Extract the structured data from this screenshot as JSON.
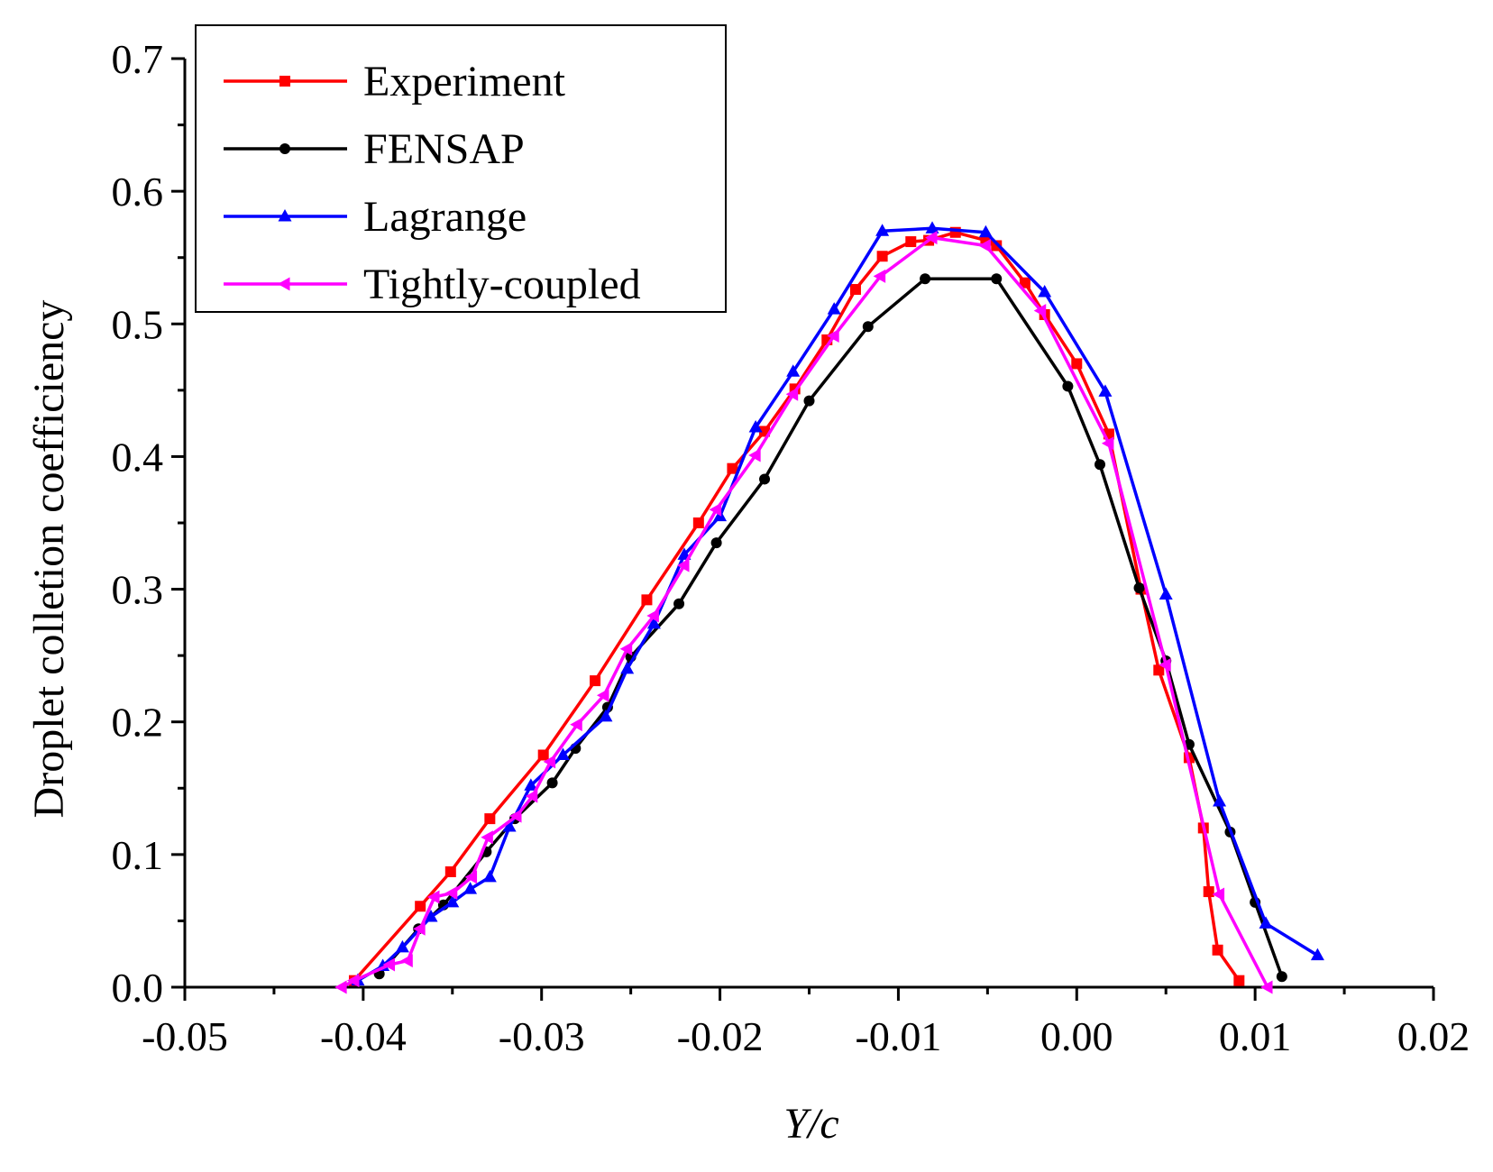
{
  "chart_data": {
    "type": "line",
    "title": "",
    "xlabel": "Y/c",
    "ylabel": "Droplet colletion coefficiency",
    "xlim": [
      -0.05,
      0.02
    ],
    "ylim": [
      0.0,
      0.7
    ],
    "xticks": [
      "-0.05",
      "-0.04",
      "-0.03",
      "-0.02",
      "-0.01",
      "0.00",
      "0.01",
      "0.02"
    ],
    "yticks": [
      "0.0",
      "0.1",
      "0.2",
      "0.3",
      "0.4",
      "0.5",
      "0.6",
      "0.7"
    ],
    "grid": false,
    "legend_position": "top-left",
    "series": [
      {
        "name": "Experiment",
        "color": "#ff0000",
        "marker": "square",
        "points": [
          [
            -0.0405,
            0.005
          ],
          [
            -0.0368,
            0.061
          ],
          [
            -0.0351,
            0.087
          ],
          [
            -0.0329,
            0.127
          ],
          [
            -0.0299,
            0.175
          ],
          [
            -0.027,
            0.231
          ],
          [
            -0.0241,
            0.292
          ],
          [
            -0.0212,
            0.35
          ],
          [
            -0.0193,
            0.391
          ],
          [
            -0.0175,
            0.419
          ],
          [
            -0.0158,
            0.451
          ],
          [
            -0.014,
            0.488
          ],
          [
            -0.0124,
            0.526
          ],
          [
            -0.0109,
            0.551
          ],
          [
            -0.0093,
            0.562
          ],
          [
            -0.0083,
            0.563
          ],
          [
            -0.0068,
            0.569
          ],
          [
            -0.0051,
            0.563
          ],
          [
            -0.0045,
            0.559
          ],
          [
            -0.0029,
            0.531
          ],
          [
            -0.0018,
            0.507
          ],
          [
            0.0,
            0.47
          ],
          [
            0.0018,
            0.417
          ],
          [
            0.0036,
            0.3
          ],
          [
            0.0046,
            0.239
          ],
          [
            0.0063,
            0.173
          ],
          [
            0.0071,
            0.12
          ],
          [
            0.0074,
            0.072
          ],
          [
            0.0079,
            0.028
          ],
          [
            0.0091,
            0.005
          ]
        ]
      },
      {
        "name": "FENSAP",
        "color": "#000000",
        "marker": "circle",
        "points": [
          [
            -0.0391,
            0.01
          ],
          [
            -0.0369,
            0.044
          ],
          [
            -0.0355,
            0.062
          ],
          [
            -0.0331,
            0.102
          ],
          [
            -0.0315,
            0.127
          ],
          [
            -0.0294,
            0.154
          ],
          [
            -0.0281,
            0.18
          ],
          [
            -0.0263,
            0.211
          ],
          [
            -0.025,
            0.249
          ],
          [
            -0.0223,
            0.289
          ],
          [
            -0.0202,
            0.335
          ],
          [
            -0.0175,
            0.383
          ],
          [
            -0.015,
            0.442
          ],
          [
            -0.0117,
            0.498
          ],
          [
            -0.0085,
            0.534
          ],
          [
            -0.0045,
            0.534
          ],
          [
            -0.0005,
            0.453
          ],
          [
            0.0013,
            0.394
          ],
          [
            0.0035,
            0.301
          ],
          [
            0.005,
            0.246
          ],
          [
            0.0063,
            0.183
          ],
          [
            0.0086,
            0.117
          ],
          [
            0.01,
            0.064
          ],
          [
            0.0115,
            0.008
          ]
        ]
      },
      {
        "name": "Lagrange",
        "color": "#0000ff",
        "marker": "triangle-up",
        "points": [
          [
            -0.0403,
            0.005
          ],
          [
            -0.0389,
            0.016
          ],
          [
            -0.0378,
            0.03
          ],
          [
            -0.0362,
            0.053
          ],
          [
            -0.035,
            0.064
          ],
          [
            -0.034,
            0.074
          ],
          [
            -0.0329,
            0.083
          ],
          [
            -0.0318,
            0.121
          ],
          [
            -0.0306,
            0.152
          ],
          [
            -0.0288,
            0.175
          ],
          [
            -0.0264,
            0.204
          ],
          [
            -0.0252,
            0.24
          ],
          [
            -0.0237,
            0.274
          ],
          [
            -0.022,
            0.326
          ],
          [
            -0.02,
            0.355
          ],
          [
            -0.018,
            0.422
          ],
          [
            -0.0159,
            0.464
          ],
          [
            -0.0136,
            0.511
          ],
          [
            -0.0109,
            0.57
          ],
          [
            -0.0081,
            0.572
          ],
          [
            -0.0051,
            0.569
          ],
          [
            -0.0018,
            0.524
          ],
          [
            0.0016,
            0.449
          ],
          [
            0.005,
            0.296
          ],
          [
            0.008,
            0.14
          ],
          [
            0.0106,
            0.048
          ],
          [
            0.0135,
            0.024
          ]
        ]
      },
      {
        "name": "Tightly-coupled",
        "color": "#ff00ff",
        "marker": "triangle-left",
        "points": [
          [
            -0.0412,
            0.0
          ],
          [
            -0.0405,
            0.005
          ],
          [
            -0.0385,
            0.017
          ],
          [
            -0.0375,
            0.02
          ],
          [
            -0.0368,
            0.044
          ],
          [
            -0.036,
            0.068
          ],
          [
            -0.035,
            0.071
          ],
          [
            -0.0339,
            0.083
          ],
          [
            -0.033,
            0.113
          ],
          [
            -0.0314,
            0.129
          ],
          [
            -0.0305,
            0.144
          ],
          [
            -0.0295,
            0.17
          ],
          [
            -0.028,
            0.198
          ],
          [
            -0.0265,
            0.22
          ],
          [
            -0.0252,
            0.255
          ],
          [
            -0.0237,
            0.28
          ],
          [
            -0.022,
            0.318
          ],
          [
            -0.0202,
            0.36
          ],
          [
            -0.018,
            0.401
          ],
          [
            -0.0159,
            0.447
          ],
          [
            -0.0136,
            0.491
          ],
          [
            -0.011,
            0.536
          ],
          [
            -0.0081,
            0.565
          ],
          [
            -0.0051,
            0.559
          ],
          [
            -0.002,
            0.51
          ],
          [
            0.0018,
            0.41
          ],
          [
            0.005,
            0.243
          ],
          [
            0.008,
            0.07
          ],
          [
            0.0107,
            0.0
          ]
        ]
      }
    ]
  }
}
